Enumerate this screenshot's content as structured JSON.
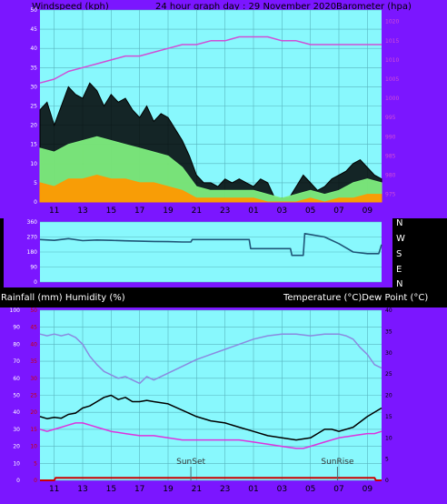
{
  "top_chart": {
    "left_label": "Windspeed (kph)",
    "title": "24 hour graph day : 29 November 2020",
    "right_label": "Barometer (hpa)"
  },
  "direction_chart": {
    "cardinal_labels": [
      "N",
      "W",
      "S",
      "E",
      "N"
    ]
  },
  "bottom_chart": {
    "left_label": "Rainfall (mm)  Humidity (%)",
    "right_label": "Temperature (°C)Dew Point (°C)",
    "sunset_label": "SunSet",
    "sunrise_label": "SunRise"
  },
  "colors": {
    "panel": "#7b16ff",
    "plot_bg": "#88f8fd",
    "grid": "#58b5c0",
    "gust": "#000000",
    "wind_avg": "#7dec7d",
    "wind_min": "#ff9900",
    "barometer": "#d04ed6",
    "direction": "#1f5577",
    "humidity": "#8a8ae0",
    "temperature": "#000000",
    "dew_point": "#dd33dd",
    "rainfall": "#cc0000",
    "rain_axis": "#cc0000"
  },
  "chart_data": [
    {
      "type": "line",
      "title": "24 hour graph day : 29 November 2020",
      "x_ticks": [
        "11",
        "13",
        "15",
        "17",
        "19",
        "21",
        "23",
        "01",
        "03",
        "05",
        "07",
        "09"
      ],
      "x_hours": [
        10,
        34
      ],
      "left_axis": {
        "label": "Windspeed (kph)",
        "range": [
          0,
          50
        ],
        "ticks": [
          0,
          5,
          10,
          15,
          20,
          25,
          30,
          35,
          40,
          45,
          50
        ]
      },
      "right_axis": {
        "label": "Barometer (hpa)",
        "range": [
          973,
          1023
        ],
        "ticks": [
          975,
          980,
          985,
          990,
          995,
          1000,
          1005,
          1010,
          1015,
          1020
        ]
      },
      "grid": true,
      "series": [
        {
          "name": "Wind gust",
          "axis": "left",
          "x": [
            10,
            10.5,
            11,
            11.5,
            12,
            12.5,
            13,
            13.5,
            14,
            14.5,
            15,
            15.5,
            16,
            16.5,
            17,
            17.5,
            18,
            18.5,
            19,
            19.5,
            20,
            20.5,
            21,
            21.5,
            22,
            22.5,
            23,
            23.5,
            24,
            24.5,
            25,
            25.5,
            26,
            26.5,
            27,
            27.5,
            28,
            28.5,
            29,
            29.5,
            30,
            30.5,
            31,
            31.5,
            32,
            32.5,
            33,
            33.5,
            34
          ],
          "values": [
            24,
            26,
            20,
            25,
            30,
            28,
            27,
            31,
            29,
            25,
            28,
            26,
            27,
            24,
            22,
            25,
            21,
            23,
            22,
            19,
            16,
            12,
            7,
            5,
            5,
            4,
            6,
            5,
            6,
            5,
            4,
            6,
            5,
            1,
            1,
            1,
            4,
            7,
            5,
            3,
            4,
            6,
            7,
            8,
            10,
            11,
            9,
            7,
            6
          ]
        },
        {
          "name": "Wind average",
          "axis": "left",
          "x": [
            10,
            11,
            12,
            13,
            14,
            15,
            16,
            17,
            18,
            19,
            20,
            21,
            22,
            23,
            24,
            25,
            26,
            27,
            28,
            29,
            30,
            31,
            32,
            33,
            34
          ],
          "values": [
            14,
            13,
            15,
            16,
            17,
            16,
            15,
            14,
            13,
            12,
            9,
            4,
            3,
            3,
            3,
            3,
            2,
            1,
            2,
            3,
            2,
            3,
            5,
            6,
            5
          ]
        },
        {
          "name": "Wind minimum",
          "axis": "left",
          "x": [
            10,
            11,
            12,
            13,
            14,
            15,
            16,
            17,
            18,
            19,
            20,
            21,
            22,
            23,
            24,
            25,
            26,
            27,
            28,
            29,
            30,
            31,
            32,
            33,
            34
          ],
          "values": [
            5,
            4,
            6,
            6,
            7,
            6,
            6,
            5,
            5,
            4,
            3,
            1,
            1,
            1,
            1,
            1,
            0,
            0,
            0,
            1,
            0,
            1,
            1,
            2,
            2
          ]
        },
        {
          "name": "Barometer",
          "axis": "right",
          "x": [
            10,
            11,
            12,
            13,
            14,
            15,
            16,
            17,
            18,
            19,
            20,
            21,
            22,
            23,
            24,
            25,
            26,
            27,
            28,
            29,
            30,
            31,
            32,
            33,
            34
          ],
          "values": [
            1004,
            1005,
            1007,
            1008,
            1009,
            1010,
            1011,
            1011,
            1012,
            1013,
            1014,
            1014,
            1015,
            1015,
            1016,
            1016,
            1016,
            1015,
            1015,
            1014,
            1014,
            1014,
            1014,
            1014,
            1014
          ]
        }
      ]
    },
    {
      "type": "line",
      "x_hours": [
        10,
        34
      ],
      "y_axis": {
        "range": [
          0,
          360
        ],
        "ticks": [
          0,
          90,
          180,
          270,
          360
        ]
      },
      "series": [
        {
          "name": "Wind direction",
          "x": [
            10,
            11,
            12,
            13,
            14,
            15,
            16,
            17,
            18,
            19,
            20,
            20.6,
            20.7,
            21,
            22,
            23,
            24,
            24.7,
            24.8,
            25,
            26,
            27,
            27.6,
            27.7,
            28,
            28.5,
            28.6,
            29,
            30,
            31,
            32,
            33,
            33.8,
            34
          ],
          "values": [
            255,
            250,
            260,
            248,
            252,
            250,
            247,
            245,
            243,
            242,
            240,
            240,
            255,
            255,
            255,
            255,
            255,
            255,
            200,
            200,
            200,
            200,
            200,
            160,
            160,
            160,
            290,
            285,
            270,
            230,
            180,
            170,
            170,
            225
          ]
        }
      ]
    },
    {
      "type": "line",
      "x_ticks": [
        "11",
        "13",
        "15",
        "17",
        "19",
        "21",
        "23",
        "01",
        "03",
        "05",
        "07",
        "09"
      ],
      "x_hours": [
        10,
        34
      ],
      "left_axis": {
        "label": "Rainfall (mm)  Humidity (%)",
        "range": [
          0,
          100
        ],
        "ticks": [
          0,
          10,
          20,
          30,
          40,
          50,
          60,
          70,
          80,
          90,
          100
        ]
      },
      "rain_axis": {
        "range": [
          0,
          50
        ],
        "ticks": [
          0,
          5,
          10,
          15,
          20,
          25,
          30,
          35,
          40,
          45,
          50
        ]
      },
      "right_axis": {
        "label": "Temperature (°C)Dew Point (°C)",
        "range": [
          0,
          40
        ],
        "ticks": [
          0,
          5,
          10,
          15,
          20,
          25,
          30,
          35,
          40
        ]
      },
      "markers": [
        {
          "label": "SunSet",
          "x": 20.6
        },
        {
          "label": "SunRise",
          "x": 30.9
        }
      ],
      "grid": true,
      "series": [
        {
          "name": "Humidity",
          "axis": "left",
          "x": [
            10,
            10.5,
            11,
            11.5,
            12,
            12.5,
            13,
            13.5,
            14,
            14.5,
            15,
            15.5,
            16,
            16.5,
            17,
            17.5,
            18,
            19,
            20,
            21,
            22,
            23,
            24,
            25,
            26,
            27,
            28,
            29,
            30,
            31,
            31.5,
            32,
            32.5,
            33,
            33.5,
            34
          ],
          "values": [
            86,
            85,
            86,
            85,
            86,
            84,
            80,
            73,
            68,
            64,
            62,
            60,
            61,
            59,
            57,
            61,
            59,
            63,
            67,
            71,
            74,
            77,
            80,
            83,
            85,
            86,
            86,
            85,
            86,
            86,
            85,
            83,
            78,
            74,
            68,
            66
          ]
        },
        {
          "name": "Temperature",
          "axis": "right",
          "x": [
            10,
            10.5,
            11,
            11.5,
            12,
            12.5,
            13,
            13.5,
            14,
            14.5,
            15,
            15.5,
            16,
            16.5,
            17,
            17.5,
            18,
            19,
            20,
            21,
            22,
            23,
            24,
            25,
            26,
            27,
            28,
            29,
            29.5,
            30,
            30.5,
            31,
            32,
            33,
            34
          ],
          "values": [
            15,
            14.5,
            14.8,
            14.6,
            15.5,
            15.8,
            17,
            17.5,
            18.5,
            19.5,
            20,
            19,
            19.5,
            18.5,
            18.5,
            18.8,
            18.5,
            18,
            16.5,
            15,
            14,
            13.5,
            12.5,
            11.5,
            10.5,
            10,
            9.5,
            10,
            11,
            12,
            12,
            11.5,
            12.5,
            15,
            17
          ]
        },
        {
          "name": "Dew point",
          "axis": "right",
          "x": [
            10,
            10.5,
            11,
            11.5,
            12,
            12.5,
            13,
            13.5,
            14,
            14.5,
            15,
            16,
            17,
            18,
            19,
            20,
            21,
            22,
            23,
            24,
            25,
            26,
            27,
            28,
            28.5,
            29,
            30,
            31,
            32,
            33,
            33.5,
            34
          ],
          "values": [
            12,
            11.5,
            12,
            12.5,
            13,
            13.5,
            13.5,
            13,
            12.5,
            12,
            11.5,
            11,
            10.5,
            10.5,
            10,
            9.5,
            9.5,
            9.5,
            9.5,
            9.5,
            9,
            8.5,
            8,
            7.5,
            7.5,
            8,
            9,
            10,
            10.5,
            11,
            11,
            11.5
          ]
        },
        {
          "name": "Rainfall",
          "axis": "left",
          "x": [
            10,
            11,
            11.1,
            12,
            20,
            30,
            31,
            33.5,
            33.6,
            34
          ],
          "values": [
            0,
            0,
            1.5,
            1.5,
            1.5,
            1.5,
            1.5,
            1.5,
            0,
            0
          ]
        }
      ]
    }
  ]
}
